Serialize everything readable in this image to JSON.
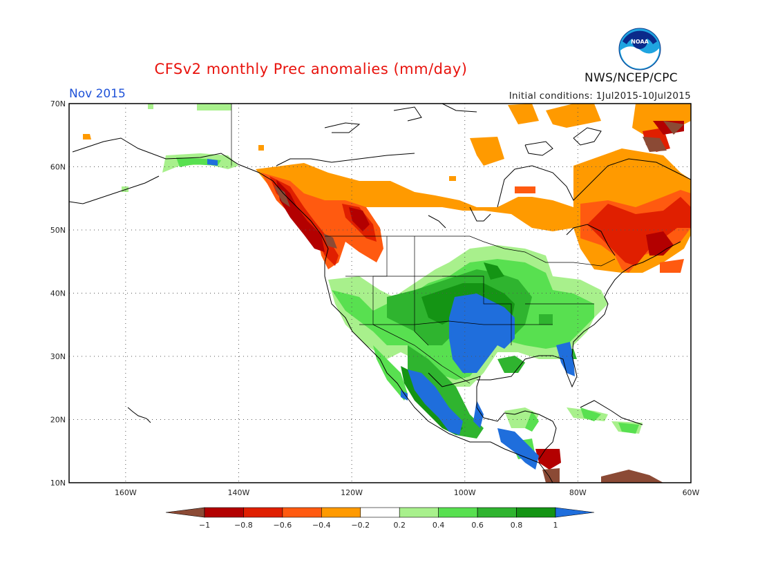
{
  "header": {
    "title": "CFSv2 monthly Prec anomalies (mm/day)",
    "month": "Nov 2015",
    "initial_conditions": "Initial conditions: 1Jul2015-10Jul2015",
    "agency": "NWS/NCEP/CPC",
    "logo_text": "NOAA"
  },
  "map": {
    "lat_labels": [
      "70N",
      "60N",
      "50N",
      "40N",
      "30N",
      "20N",
      "10N"
    ],
    "lon_labels": [
      "160W",
      "140W",
      "120W",
      "100W",
      "80W",
      "60W"
    ],
    "lat_range": [
      10,
      70
    ],
    "lon_range": [
      -170,
      -60
    ],
    "grid": "dotted"
  },
  "legend": {
    "labels": [
      "-1",
      "-0.8",
      "-0.6",
      "-0.4",
      "-0.2",
      "0.2",
      "0.4",
      "0.6",
      "0.8",
      "1"
    ],
    "colors": [
      "#8b4a35",
      "#b30000",
      "#e01f00",
      "#ff5a10",
      "#ff9a00",
      "#ffffff",
      "#a8f08c",
      "#58e050",
      "#2fb42f",
      "#149414",
      "#1f6edc"
    ]
  }
}
